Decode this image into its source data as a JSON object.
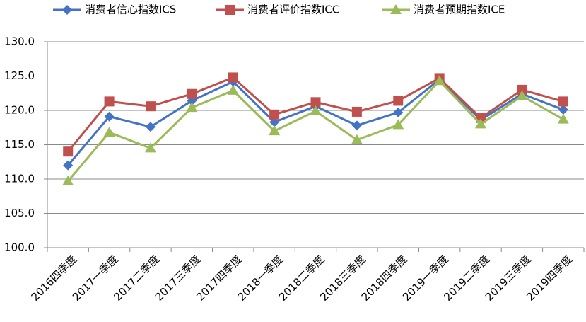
{
  "chart_data": {
    "type": "line",
    "categories": [
      "2016四季度",
      "2017一季度",
      "2017二季度",
      "2017三季度",
      "2017四季度",
      "2018一季度",
      "2018二季度",
      "2018三季度",
      "2018四季度",
      "2019一季度",
      "2019二季度",
      "2019三季度",
      "2019四季度"
    ],
    "series": [
      {
        "name": "消费者信心指数ICS",
        "color": "#4472c4",
        "marker": "diamond",
        "values": [
          112.0,
          119.1,
          117.6,
          121.4,
          124.2,
          118.3,
          120.6,
          117.8,
          119.7,
          124.5,
          118.6,
          122.4,
          120.1
        ]
      },
      {
        "name": "消费者评价指数ICC",
        "color": "#c0504d",
        "marker": "square",
        "values": [
          114.0,
          121.3,
          120.6,
          122.4,
          124.8,
          119.4,
          121.2,
          119.8,
          121.4,
          124.7,
          118.9,
          123.0,
          121.3
        ]
      },
      {
        "name": "消费者预期指数ICE",
        "color": "#9bbb59",
        "marker": "triangle",
        "values": [
          109.7,
          116.8,
          114.5,
          120.4,
          122.9,
          117.0,
          119.9,
          115.7,
          117.9,
          124.3,
          118.0,
          122.1,
          118.7
        ]
      }
    ],
    "ylim": [
      100,
      130
    ],
    "yticks": [
      {
        "value": 100,
        "label": "100.0"
      },
      {
        "value": 105,
        "label": "105.0"
      },
      {
        "value": 110,
        "label": "110.0"
      },
      {
        "value": 115,
        "label": "115.0"
      },
      {
        "value": 120,
        "label": "120.0"
      },
      {
        "value": 125,
        "label": "125.0"
      },
      {
        "value": 130,
        "label": "130.0"
      }
    ],
    "grid": true,
    "legend": "top"
  }
}
